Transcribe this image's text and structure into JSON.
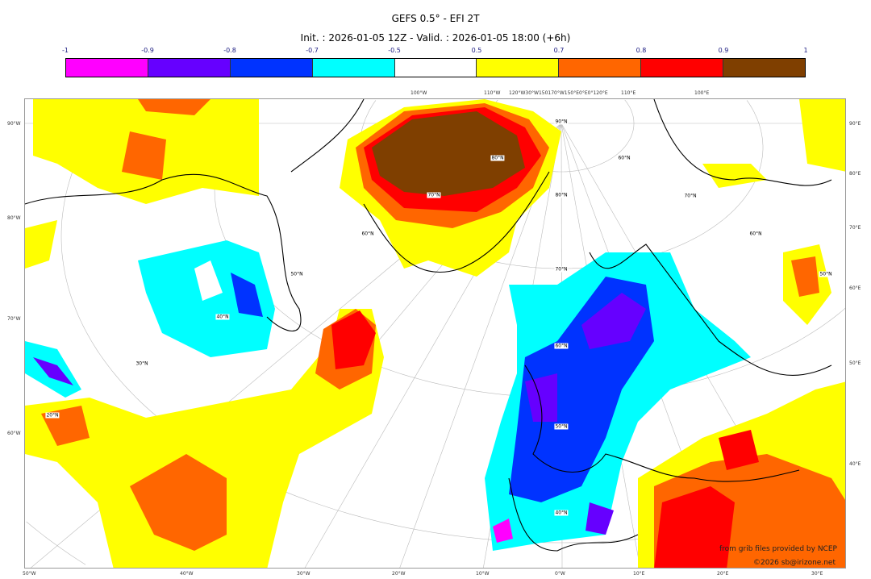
{
  "title": "GEFS 0.5° - EFI 2T",
  "subtitle": "Init. : 2026-01-05 12Z - Valid. : 2026-01-05 18:00 (+6h)",
  "colorbar": {
    "ticks": [
      "-1",
      "-0.9",
      "-0.8",
      "-0.7",
      "-0.5",
      "0.5",
      "0.7",
      "0.8",
      "0.9",
      "1"
    ],
    "colors": [
      "#ff00ff",
      "#6600ff",
      "#0033ff",
      "#00ffff",
      "#ffffff",
      "#ffff00",
      "#ff6600",
      "#ff0000",
      "#7f3f00"
    ]
  },
  "axes": {
    "left": [
      "90°W",
      "80°W",
      "70°W",
      "60°W"
    ],
    "right": [
      "90°E",
      "80°E",
      "70°E",
      "60°E",
      "50°E",
      "40°E"
    ],
    "bottom": [
      "50°W",
      "40°W",
      "30°W",
      "20°W",
      "10°W",
      "0°W",
      "10°E",
      "20°E",
      "30°E"
    ],
    "top": [
      "100°W",
      "110°W",
      "120°W30°W150170°W150°E0°E0°120°E",
      "110°E",
      "100°E"
    ]
  },
  "lat_labels": [
    "90°N",
    "80°N",
    "80°N",
    "70°N",
    "70°N",
    "60°N",
    "60°N",
    "50°N",
    "50°N",
    "70°N",
    "40°N",
    "60°N",
    "30°N",
    "20°N",
    "50°N",
    "40°N",
    "60°N"
  ],
  "credits": {
    "source": "from grib files provided by NCEP",
    "copyright": "©2026 sb@irizone.net"
  }
}
